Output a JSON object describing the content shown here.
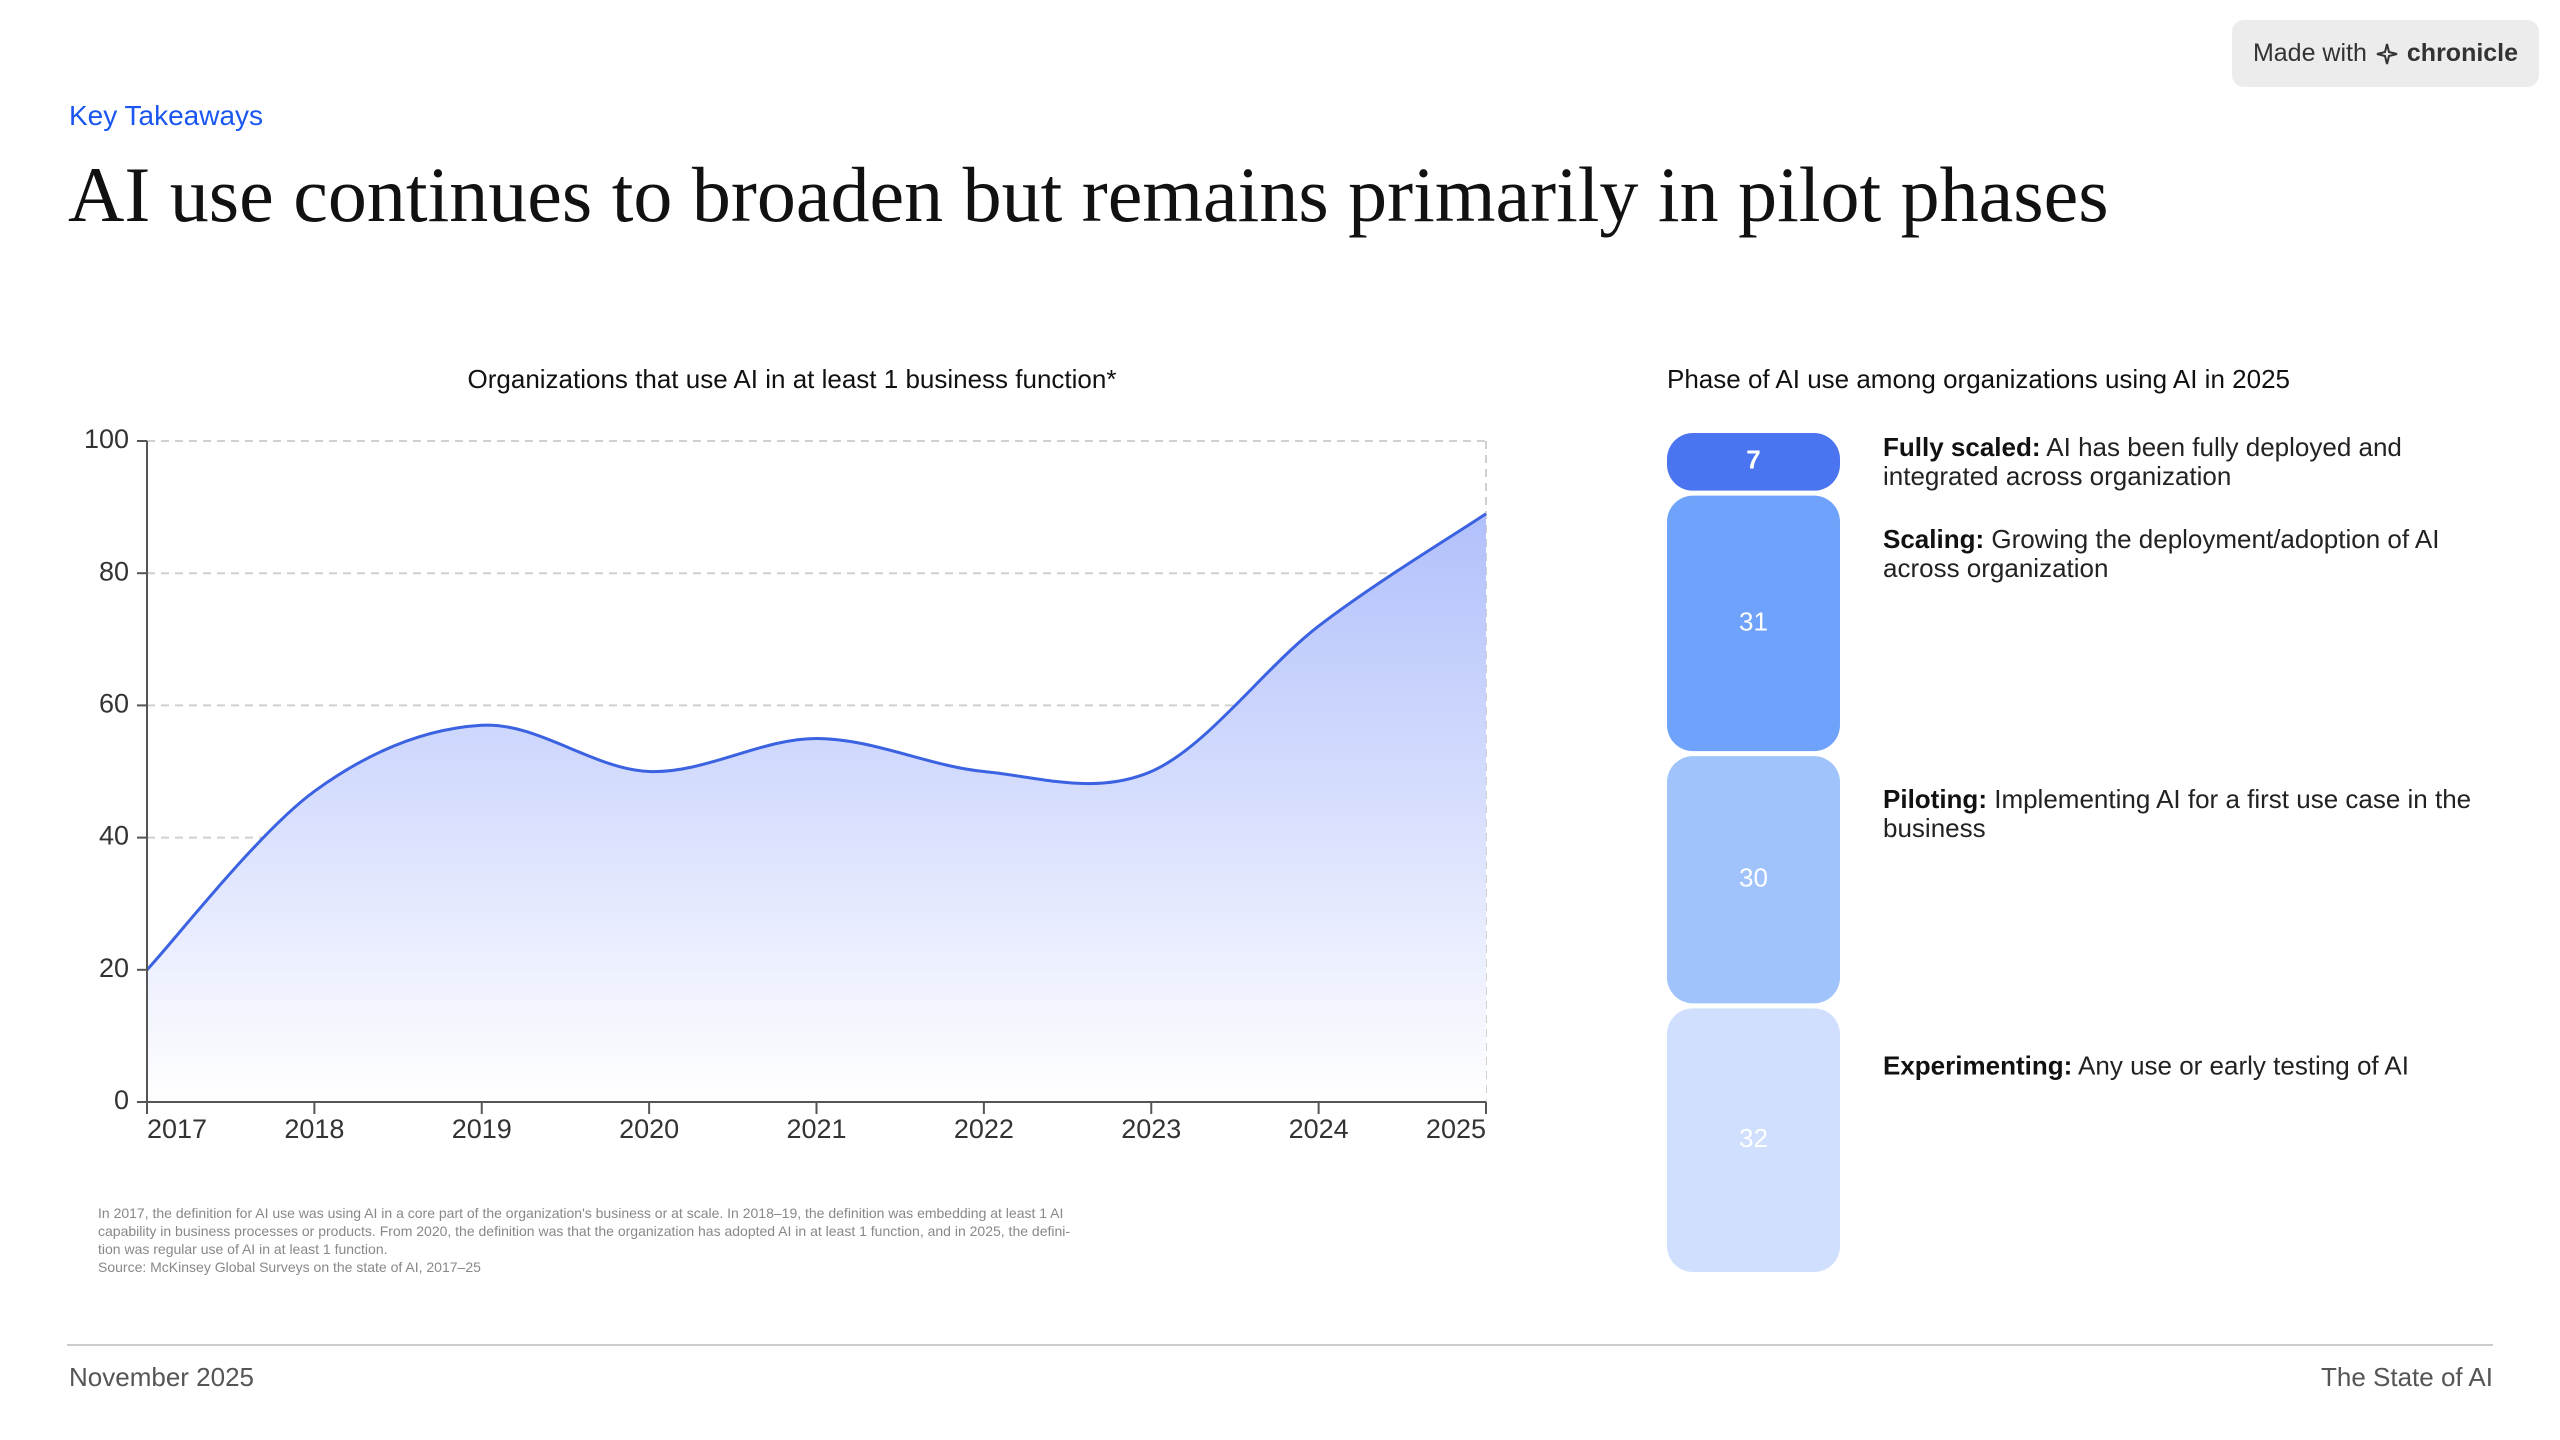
{
  "badge": {
    "text": "Made with",
    "brand": "chronicle"
  },
  "header": {
    "eyebrow": "Key Takeaways",
    "title": "AI use continues to broaden but remains primarily in pilot phases"
  },
  "chart_data": [
    {
      "type": "area",
      "title": "Organizations that use AI in at least 1 business function*",
      "x": [
        2017,
        2018,
        2019,
        2020,
        2021,
        2022,
        2023,
        2024,
        2025
      ],
      "values": [
        20,
        47,
        57,
        50,
        55,
        50,
        50,
        72,
        89
      ],
      "color": "#3b62e0",
      "fill": "#aebdfb",
      "xlim": [
        2017,
        2025
      ],
      "xticks": [
        2017,
        2018,
        2019,
        2020,
        2021,
        2022,
        2023,
        2024,
        2025
      ],
      "ylim": [
        0,
        100
      ],
      "yticks": [
        0,
        20,
        40,
        60,
        80,
        100
      ],
      "grid": true
    },
    {
      "type": "stack",
      "title": "Phase of AI use among organizations using AI in 2025",
      "categories": [
        "Fully scaled:",
        "Scaling:",
        "Piloting:",
        "Experimenting:"
      ],
      "descriptions": [
        "AI has been fully deployed and integrated across organization",
        "Growing the deployment/adoption of AI across organization",
        "Implementing AI for a first use case in the business",
        "Any use or early testing of AI"
      ],
      "values": [
        7,
        31,
        30,
        32
      ],
      "colors": [
        "#4b74f0",
        "#6fa3fb",
        "#a0c3fc",
        "#cfdffd"
      ]
    }
  ],
  "footnote": [
    "In 2017, the definition for AI use was using AI in a core part of the organization's business or at scale. In 2018–19, the definition was embedding at least 1 AI",
    "capability in business processes or products. From 2020, the definition was that the organization has adopted AI in at least 1 function, and in 2025, the defini-",
    "tion was regular use of AI in at least 1 function.",
    "Source: McKinsey Global Surveys on the state of AI, 2017–25"
  ],
  "footer": {
    "date": "November 2025",
    "report": "The State of AI"
  }
}
